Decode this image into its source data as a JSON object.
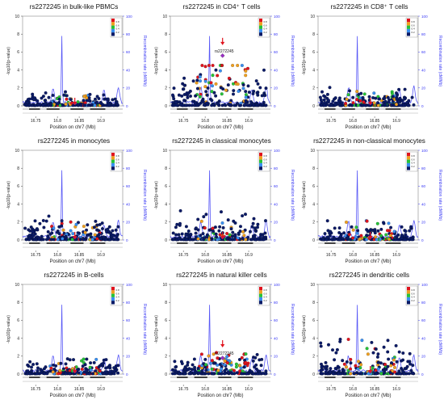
{
  "colors": {
    "recomb_line": "#3a3af5",
    "marker": "#e0141e",
    "snp_default": "#0a1a66",
    "ld_scale": [
      "#0a1a66",
      "#3a8ff0",
      "#27c23a",
      "#f0a020",
      "#e0141e"
    ]
  },
  "chart_data": [
    {
      "type": "scatter",
      "title": "rs2272245 in bulk-like PBMCs",
      "xlabel": "Position on chr7 (Mb)",
      "ylabel": "-log10(p-value)",
      "ylabel_right": "Recombination rate (cM/Mb)",
      "xlim": [
        16.72,
        16.95
      ],
      "ylim": [
        0,
        10
      ],
      "ylim_right": [
        0,
        100
      ],
      "x_ticks": [
        16.75,
        16.8,
        16.85,
        16.9
      ],
      "y_ticks": [
        0,
        2,
        4,
        6,
        8,
        10
      ],
      "y_ticks_right": [
        0,
        20,
        40,
        60,
        80,
        100
      ],
      "lead_snp": {
        "x": 16.84,
        "y": 0.3,
        "label": ""
      },
      "max_y": 1.7,
      "recomb_peaks": [
        {
          "x": 16.81,
          "y": 75
        },
        {
          "x": 16.79,
          "y": 17
        },
        {
          "x": 16.907,
          "y": 14
        },
        {
          "x": 16.94,
          "y": 18
        }
      ],
      "legend_ld": [
        "0.8",
        "0.6",
        "0.4",
        "0.2"
      ]
    },
    {
      "type": "scatter",
      "title": "rs2272245 in CD4⁺ T cells",
      "xlabel": "Position on chr7 (Mb)",
      "ylabel": "-log10(p-value)",
      "ylabel_right": "Recombination rate (cM/Mb)",
      "xlim": [
        16.72,
        16.95
      ],
      "ylim": [
        0,
        10
      ],
      "ylim_right": [
        0,
        100
      ],
      "x_ticks": [
        16.75,
        16.8,
        16.85,
        16.9
      ],
      "y_ticks": [
        0,
        2,
        4,
        6,
        8,
        10
      ],
      "y_ticks_right": [
        0,
        20,
        40,
        60,
        80,
        100
      ],
      "lead_snp": {
        "x": 16.84,
        "y": 5.6,
        "label": "rs2272245"
      },
      "max_y": 4.5,
      "recomb_peaks": [
        {
          "x": 16.81,
          "y": 75
        },
        {
          "x": 16.79,
          "y": 17
        },
        {
          "x": 16.907,
          "y": 14
        },
        {
          "x": 16.94,
          "y": 18
        }
      ],
      "legend_ld": [
        "0.8",
        "0.6",
        "0.4",
        "0.2"
      ]
    },
    {
      "type": "scatter",
      "title": "rs2272245 in CD8⁺ T cells",
      "xlabel": "Position on chr7 (Mb)",
      "ylabel": "-log10(p-value)",
      "ylabel_right": "Recombination rate (cM/Mb)",
      "xlim": [
        16.72,
        16.95
      ],
      "ylim": [
        0,
        10
      ],
      "ylim_right": [
        0,
        100
      ],
      "x_ticks": [
        16.75,
        16.8,
        16.85,
        16.9
      ],
      "y_ticks": [
        0,
        2,
        4,
        6,
        8,
        10
      ],
      "y_ticks_right": [
        0,
        20,
        40,
        60,
        80,
        100
      ],
      "lead_snp": {
        "x": 16.84,
        "y": 0.3,
        "label": ""
      },
      "max_y": 2.3,
      "recomb_peaks": [
        {
          "x": 16.81,
          "y": 75
        },
        {
          "x": 16.79,
          "y": 17
        },
        {
          "x": 16.907,
          "y": 14
        },
        {
          "x": 16.94,
          "y": 18
        }
      ],
      "legend_ld": [
        "0.8",
        "0.6",
        "0.4",
        "0.2"
      ]
    },
    {
      "type": "scatter",
      "title": "rs2272245 in monocytes",
      "xlabel": "Position on chr7 (Mb)",
      "ylabel": "-log10(p-value)",
      "ylabel_right": "Recombination rate (cM/Mb)",
      "xlim": [
        16.72,
        16.95
      ],
      "ylim": [
        0,
        10
      ],
      "ylim_right": [
        0,
        100
      ],
      "x_ticks": [
        16.75,
        16.8,
        16.85,
        16.9
      ],
      "y_ticks": [
        0,
        2,
        4,
        6,
        8,
        10
      ],
      "y_ticks_right": [
        0,
        20,
        40,
        60,
        80,
        100
      ],
      "lead_snp": {
        "x": 16.84,
        "y": 0.3,
        "label": ""
      },
      "max_y": 2.8,
      "recomb_peaks": [
        {
          "x": 16.81,
          "y": 75
        },
        {
          "x": 16.79,
          "y": 17
        },
        {
          "x": 16.907,
          "y": 14
        },
        {
          "x": 16.94,
          "y": 18
        }
      ],
      "legend_ld": [
        "0.8",
        "0.6",
        "0.4",
        "0.2"
      ]
    },
    {
      "type": "scatter",
      "title": "rs2272245 in classical monocytes",
      "xlabel": "Position on chr7 (Mb)",
      "ylabel": "-log10(p-value)",
      "ylabel_right": "Recombination rate (cM/Mb)",
      "xlim": [
        16.72,
        16.95
      ],
      "ylim": [
        0,
        10
      ],
      "ylim_right": [
        0,
        100
      ],
      "x_ticks": [
        16.75,
        16.8,
        16.85,
        16.9
      ],
      "y_ticks": [
        0,
        2,
        4,
        6,
        8,
        10
      ],
      "y_ticks_right": [
        0,
        20,
        40,
        60,
        80,
        100
      ],
      "lead_snp": {
        "x": 16.84,
        "y": 0.3,
        "label": ""
      },
      "max_y": 3.5,
      "recomb_peaks": [
        {
          "x": 16.81,
          "y": 75
        },
        {
          "x": 16.79,
          "y": 17
        },
        {
          "x": 16.907,
          "y": 14
        },
        {
          "x": 16.94,
          "y": 18
        }
      ],
      "legend_ld": [
        "0.8",
        "0.6",
        "0.4",
        "0.2"
      ]
    },
    {
      "type": "scatter",
      "title": "rs2272245 in non-classical monocytes",
      "xlabel": "Position on chr7 (Mb)",
      "ylabel": "-log10(p-value)",
      "ylabel_right": "Recombination rate (cM/Mb)",
      "xlim": [
        16.72,
        16.95
      ],
      "ylim": [
        0,
        10
      ],
      "ylim_right": [
        0,
        100
      ],
      "x_ticks": [
        16.75,
        16.8,
        16.85,
        16.9
      ],
      "y_ticks": [
        0,
        2,
        4,
        6,
        8,
        10
      ],
      "y_ticks_right": [
        0,
        20,
        40,
        60,
        80,
        100
      ],
      "lead_snp": {
        "x": 16.84,
        "y": 0.3,
        "label": ""
      },
      "max_y": 2.4,
      "recomb_peaks": [
        {
          "x": 16.81,
          "y": 75
        },
        {
          "x": 16.79,
          "y": 17
        },
        {
          "x": 16.907,
          "y": 14
        },
        {
          "x": 16.94,
          "y": 18
        }
      ],
      "legend_ld": [
        "0.8",
        "0.6",
        "0.4",
        "0.2"
      ]
    },
    {
      "type": "scatter",
      "title": "rs2272245 in B-cells",
      "xlabel": "Position on chr7 (Mb)",
      "ylabel": "-log10(p-value)",
      "ylabel_right": "Recombination rate (cM/Mb)",
      "xlim": [
        16.72,
        16.95
      ],
      "ylim": [
        0,
        10
      ],
      "ylim_right": [
        0,
        100
      ],
      "x_ticks": [
        16.75,
        16.8,
        16.85,
        16.9
      ],
      "y_ticks": [
        0,
        2,
        4,
        6,
        8,
        10
      ],
      "y_ticks_right": [
        0,
        20,
        40,
        60,
        80,
        100
      ],
      "lead_snp": {
        "x": 16.84,
        "y": 0.3,
        "label": ""
      },
      "max_y": 2.2,
      "recomb_peaks": [
        {
          "x": 16.81,
          "y": 75
        },
        {
          "x": 16.79,
          "y": 17
        },
        {
          "x": 16.907,
          "y": 14
        },
        {
          "x": 16.94,
          "y": 18
        }
      ],
      "legend_ld": [
        "0.8",
        "0.6",
        "0.4",
        "0.2"
      ]
    },
    {
      "type": "scatter",
      "title": "rs2272245 in natural killer cells",
      "xlabel": "Position on chr7 (Mb)",
      "ylabel": "-log10(p-value)",
      "ylabel_right": "Recombination rate (cM/Mb)",
      "xlim": [
        16.72,
        16.95
      ],
      "ylim": [
        0,
        10
      ],
      "ylim_right": [
        0,
        100
      ],
      "x_ticks": [
        16.75,
        16.8,
        16.85,
        16.9
      ],
      "y_ticks": [
        0,
        2,
        4,
        6,
        8,
        10
      ],
      "y_ticks_right": [
        0,
        20,
        40,
        60,
        80,
        100
      ],
      "lead_snp": {
        "x": 16.84,
        "y": 1.8,
        "label": "rs2272245"
      },
      "max_y": 2.4,
      "recomb_peaks": [
        {
          "x": 16.81,
          "y": 75
        },
        {
          "x": 16.79,
          "y": 17
        },
        {
          "x": 16.907,
          "y": 14
        },
        {
          "x": 16.94,
          "y": 18
        }
      ],
      "legend_ld": [
        "0.8",
        "0.6",
        "0.4",
        "0.2"
      ]
    },
    {
      "type": "scatter",
      "title": "rs2272245 in dendritic cells",
      "xlabel": "Position on chr7 (Mb)",
      "ylabel": "-log10(p-value)",
      "ylabel_right": "Recombination rate (cM/Mb)",
      "xlim": [
        16.72,
        16.95
      ],
      "ylim": [
        0,
        10
      ],
      "ylim_right": [
        0,
        100
      ],
      "x_ticks": [
        16.75,
        16.8,
        16.85,
        16.9
      ],
      "y_ticks": [
        0,
        2,
        4,
        6,
        8,
        10
      ],
      "y_ticks_right": [
        0,
        20,
        40,
        60,
        80,
        100
      ],
      "lead_snp": {
        "x": 16.84,
        "y": 0.3,
        "label": ""
      },
      "max_y": 4.5,
      "recomb_peaks": [
        {
          "x": 16.81,
          "y": 75
        },
        {
          "x": 16.79,
          "y": 17
        },
        {
          "x": 16.907,
          "y": 14
        },
        {
          "x": 16.94,
          "y": 18
        }
      ],
      "legend_ld": [
        "0.8",
        "0.6",
        "0.4",
        "0.2"
      ]
    }
  ]
}
